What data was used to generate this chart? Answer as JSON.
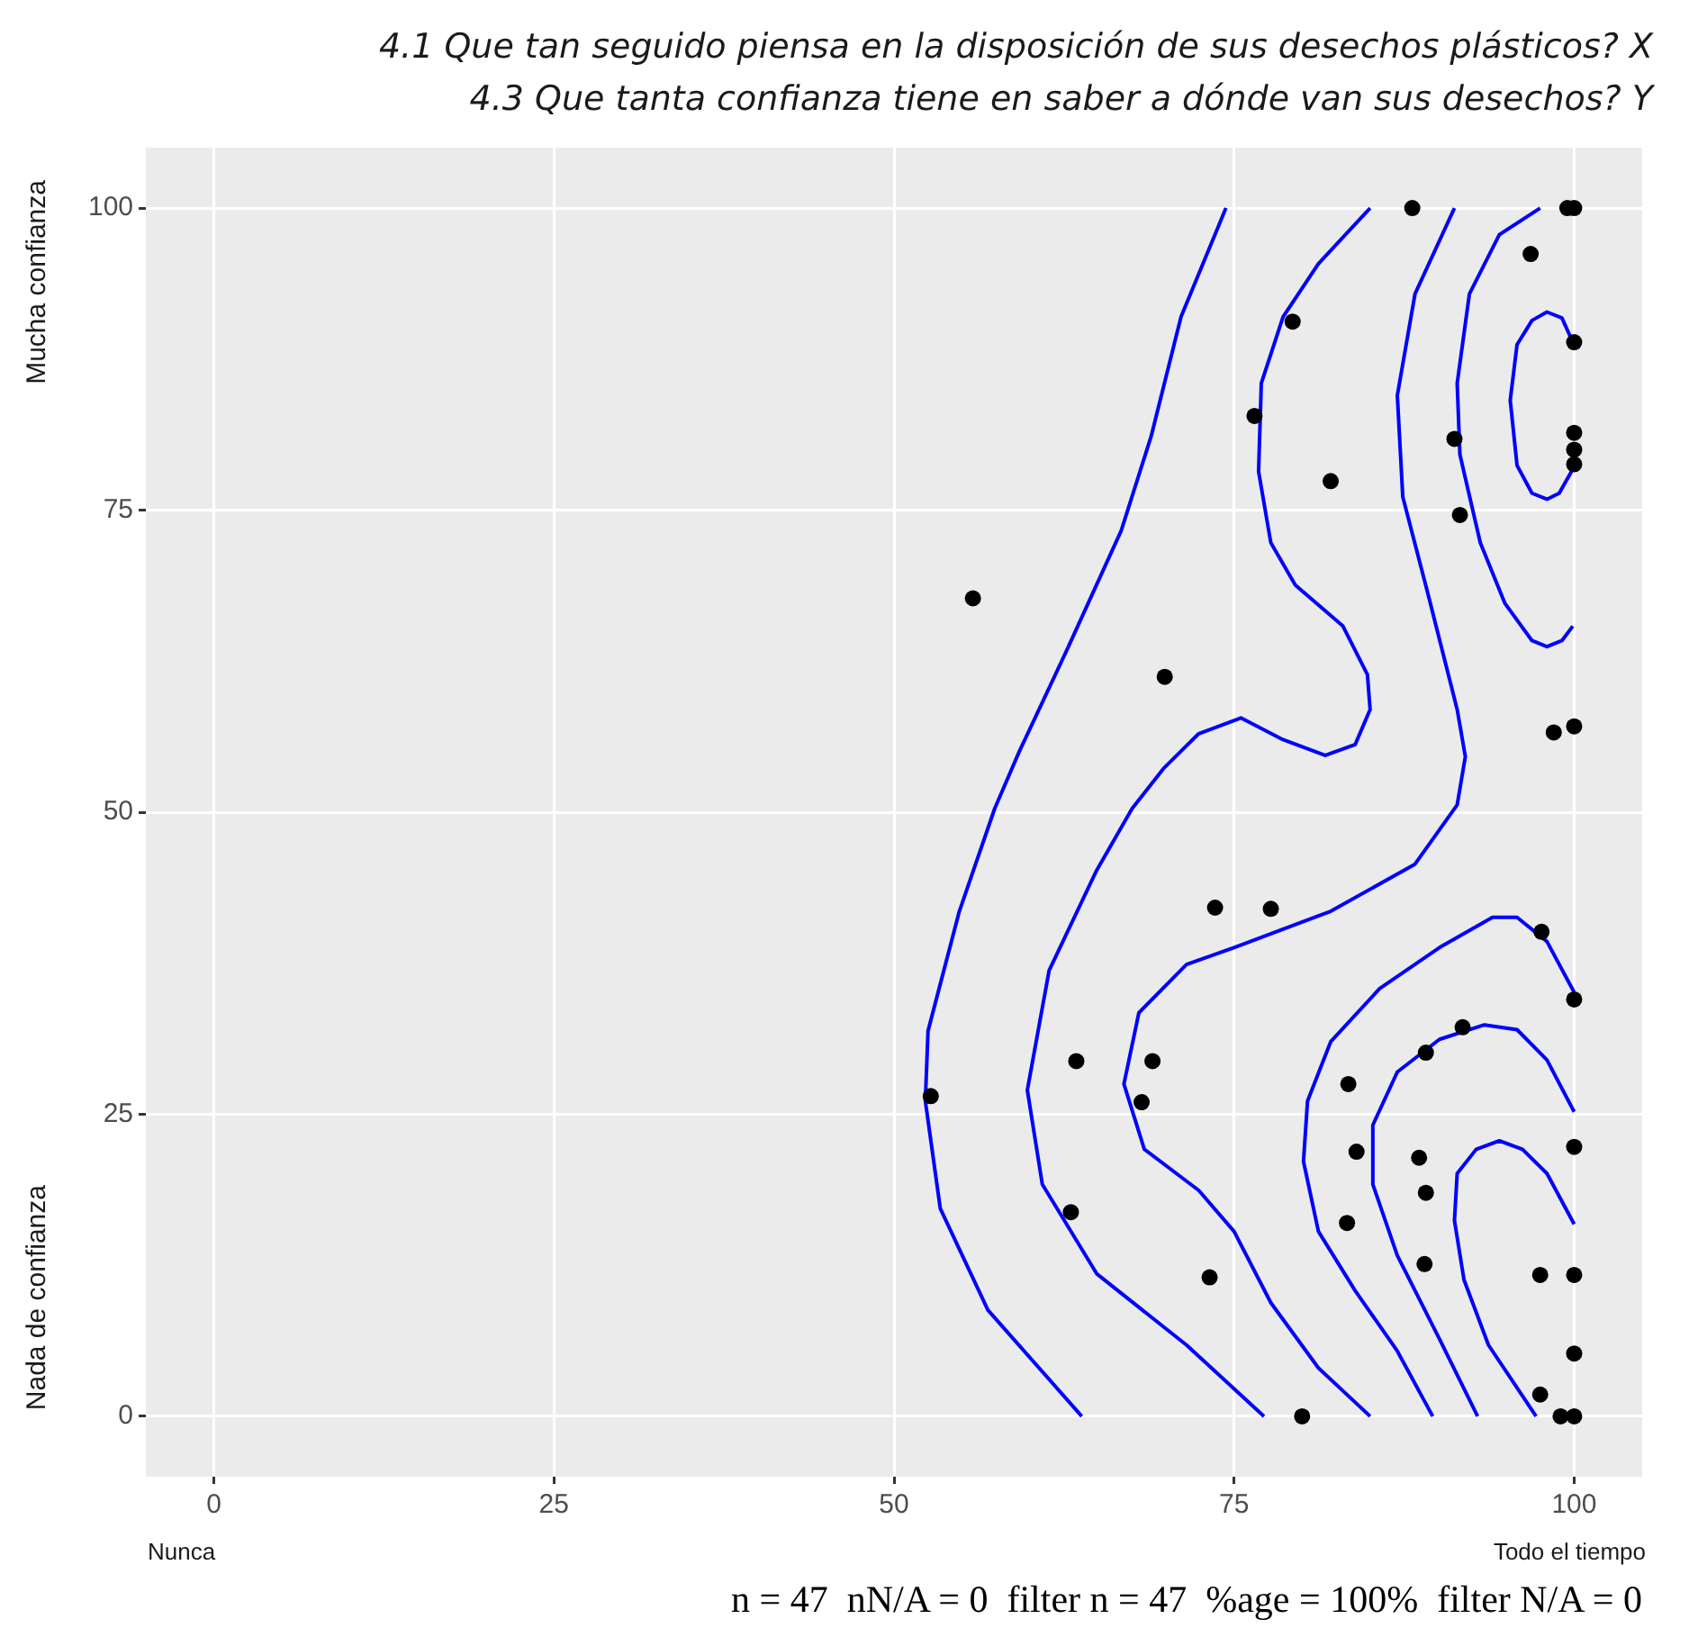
{
  "chart_data": {
    "type": "scatter",
    "title": "4.1 Que tan seguido piensa en la disposición de sus desechos plásticos? X\n4.3 Que tanta confianza tiene en saber a dónde van sus desechos? Y",
    "annotations": [
      "Nunca",
      "Todo el tiempo",
      "Mucha confianza",
      "Nada de confianza",
      "n = 47  nN/A = 0  filter n = 47  %age = 100%  filter N/A = 0"
    ],
    "xlim": [
      -5,
      105
    ],
    "ylim": [
      -5,
      105
    ],
    "xticks": [
      0,
      25,
      50,
      75,
      100
    ],
    "yticks": [
      0,
      25,
      50,
      75,
      100
    ],
    "grid": true,
    "series": [
      {
        "marker": "circle",
        "color": "#000000",
        "x": [
          88.1,
          99.5,
          100,
          96.8,
          79.3,
          100,
          76.5,
          91.2,
          100,
          100,
          100,
          82.1,
          91.6,
          55.8,
          69.9,
          98.5,
          100,
          73.6,
          77.7,
          97.6,
          100,
          91.8,
          89.1,
          63.4,
          69.0,
          52.7,
          68.2,
          83.4,
          84.0,
          88.6,
          89.1,
          100,
          63.0,
          83.3,
          89.0,
          73.2,
          97.5,
          100,
          100,
          97.5,
          80,
          99,
          100
        ],
        "values": [
          100,
          100,
          100,
          96.2,
          90.6,
          88.9,
          82.8,
          80.9,
          81.4,
          80.0,
          78.8,
          77.4,
          74.6,
          67.7,
          61.2,
          56.6,
          57.1,
          42.1,
          42.0,
          40.1,
          34.5,
          32.2,
          30.1,
          29.4,
          29.4,
          26.5,
          26.0,
          27.5,
          21.9,
          21.4,
          18.5,
          22.3,
          16.9,
          16.0,
          12.6,
          11.5,
          11.7,
          11.7,
          5.2,
          1.8,
          0,
          0,
          0
        ]
      },
      {
        "type": "line",
        "color": "#0000ff",
        "x": [
          74.4,
          71.1,
          68.9,
          66.7,
          62.7,
          59.2,
          57.4,
          54.8,
          52.5,
          52.3,
          53.4,
          56.9,
          63.8
        ],
        "values": [
          100,
          91.0,
          81.1,
          73.3,
          63.4,
          55.0,
          50.3,
          41.8,
          31.9,
          26.1,
          17.2,
          8.8,
          0
        ]
      },
      {
        "type": "line",
        "color": "#0000ff",
        "x": [
          85.0,
          81.2,
          78.6,
          77.0,
          76.8,
          77.7,
          79.5,
          83.0,
          84.8,
          85.0,
          83.9,
          81.7,
          78.6,
          75.5,
          72.4,
          69.8,
          67.5,
          64.9,
          61.4,
          59.8,
          60.9,
          64.9,
          71.5,
          77.2
        ],
        "values": [
          100,
          95.4,
          91.0,
          85.5,
          78.2,
          72.3,
          68.8,
          65.4,
          61.4,
          58.5,
          55.6,
          54.7,
          56.0,
          57.8,
          56.5,
          53.6,
          50.3,
          45.2,
          36.9,
          27.0,
          19.2,
          11.8,
          5.9,
          0
        ]
      },
      {
        "type": "line",
        "color": "#0000ff",
        "x": [
          91.2,
          88.3,
          87.0,
          87.4,
          89.2,
          91.4,
          92.0,
          91.4,
          88.3,
          82.1,
          75.0,
          71.5,
          68.0,
          66.9,
          68.4,
          72.4,
          75.0,
          77.7,
          81.2,
          85.0
        ],
        "values": [
          100,
          92.9,
          84.5,
          76.1,
          68.3,
          58.5,
          54.6,
          50.6,
          45.7,
          41.8,
          38.8,
          37.4,
          33.4,
          27.5,
          22.1,
          18.7,
          15.3,
          9.4,
          4.0,
          0
        ]
      },
      {
        "type": "line",
        "color": "#0000ff",
        "x": [
          97.5,
          94.5,
          92.3,
          91.4,
          91.6,
          93.1,
          94.9,
          96.9,
          98.0,
          99.1,
          99.9
        ],
        "values": [
          100,
          97.8,
          92.9,
          85.5,
          79.6,
          72.3,
          67.3,
          64.2,
          63.7,
          64.2,
          65.4
        ]
      },
      {
        "type": "line",
        "color": "#0000ff",
        "x": [
          99.9,
          99.1,
          98.0,
          96.9,
          95.8,
          95.3,
          95.8,
          96.9,
          98.0,
          98.9,
          99.9
        ],
        "values": [
          88.9,
          90.9,
          91.4,
          90.7,
          88.7,
          84.1,
          78.7,
          76.4,
          75.9,
          76.4,
          78.4
        ]
      },
      {
        "type": "line",
        "color": "#0000ff",
        "x": [
          100,
          98.0,
          95.8,
          94.0,
          90.1,
          85.7,
          82.1,
          80.4,
          80.1,
          81.2,
          83.9,
          87.0,
          89.6
        ],
        "values": [
          35.1,
          39.3,
          41.3,
          41.3,
          38.8,
          35.4,
          31.0,
          26.1,
          21.1,
          15.3,
          10.4,
          5.4,
          0
        ]
      },
      {
        "type": "line",
        "color": "#0000ff",
        "x": [
          100,
          98.0,
          95.8,
          93.4,
          90.1,
          87.0,
          85.2,
          85.2,
          87.0,
          90.1,
          92.9
        ],
        "values": [
          25.2,
          29.5,
          32.0,
          32.4,
          31.2,
          28.5,
          24.1,
          19.2,
          13.3,
          6.4,
          0
        ]
      },
      {
        "type": "line",
        "color": "#0000ff",
        "x": [
          100,
          98.0,
          96.2,
          94.5,
          92.8,
          91.4,
          91.2,
          91.9,
          93.7,
          97.2
        ],
        "values": [
          15.9,
          20.1,
          22.1,
          22.8,
          22.1,
          20.1,
          16.2,
          11.3,
          5.9,
          0
        ]
      }
    ]
  }
}
